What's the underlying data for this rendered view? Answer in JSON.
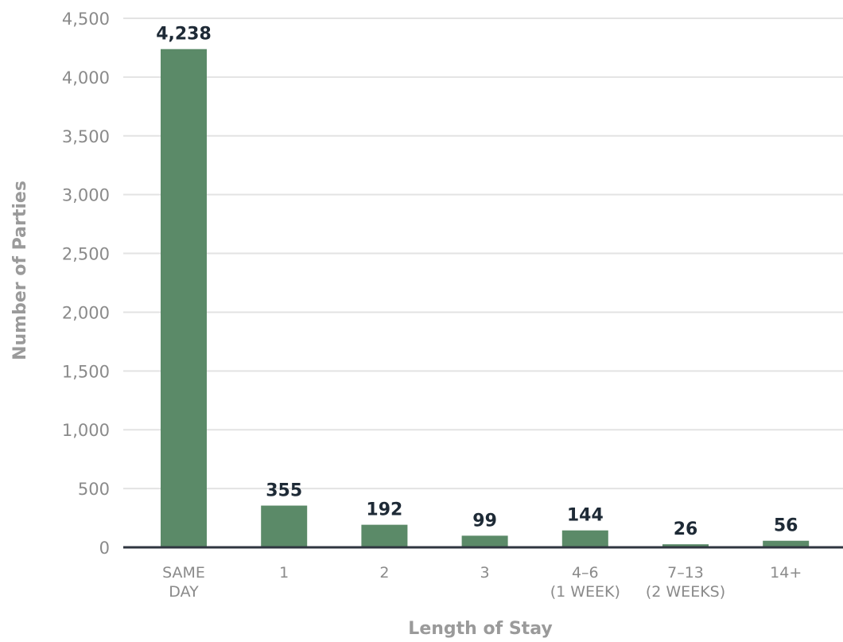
{
  "chart_data": {
    "type": "bar",
    "categories": [
      [
        "SAME",
        "DAY"
      ],
      [
        "1"
      ],
      [
        "2"
      ],
      [
        "3"
      ],
      [
        "4–6",
        "(1 WEEK)"
      ],
      [
        "7–13",
        "(2 WEEKS)"
      ],
      [
        "14+"
      ]
    ],
    "values": [
      4238,
      355,
      192,
      99,
      144,
      26,
      56
    ],
    "value_labels": [
      "4,238",
      "355",
      "192",
      "99",
      "144",
      "26",
      "56"
    ],
    "xlabel": "Length of Stay",
    "ylabel": "Number of Parties",
    "ylim": [
      0,
      4500
    ],
    "yticks": [
      0,
      500,
      1000,
      1500,
      2000,
      2500,
      3000,
      3500,
      4000,
      4500
    ],
    "ytick_labels": [
      "0",
      "500",
      "1,000",
      "1,500",
      "2,000",
      "2,500",
      "3,000",
      "3,500",
      "4,000",
      "4,500"
    ],
    "grid": true,
    "colors": {
      "bar": "#5b8a68",
      "grid": "#e3e3e3",
      "baseline": "#2f3640"
    }
  }
}
